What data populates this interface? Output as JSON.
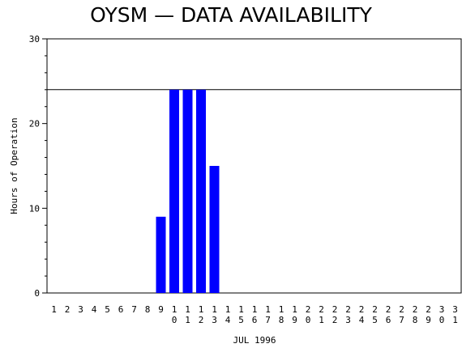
{
  "chart_data": {
    "type": "bar",
    "title": "OYSM  —  DATA AVAILABILITY",
    "xlabel": "JUL  1996",
    "ylabel": "Hours of Operation",
    "categories": [
      "1",
      "2",
      "3",
      "4",
      "5",
      "6",
      "7",
      "8",
      "9",
      "10",
      "11",
      "12",
      "13",
      "14",
      "15",
      "16",
      "17",
      "18",
      "19",
      "20",
      "21",
      "22",
      "23",
      "24",
      "25",
      "26",
      "27",
      "28",
      "29",
      "30",
      "31"
    ],
    "values": [
      0,
      0,
      0,
      0,
      0,
      0,
      0,
      0,
      9,
      24,
      24,
      24,
      15,
      0,
      0,
      0,
      0,
      0,
      0,
      0,
      0,
      0,
      0,
      0,
      0,
      0,
      0,
      0,
      0,
      0,
      0
    ],
    "ylim": [
      0,
      30
    ],
    "yticks": [
      0,
      10,
      20,
      30
    ],
    "reference_line": 24,
    "bar_color": "#0000ff",
    "grid": false
  }
}
